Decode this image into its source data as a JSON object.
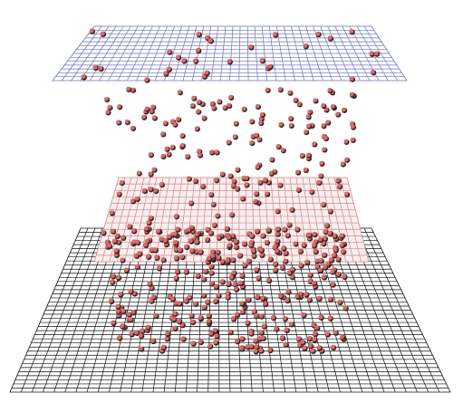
{
  "scene": {
    "background": "#ffffff",
    "planes": [
      {
        "name": "top-grid-plane",
        "color": "#6f73b8",
        "rows": 14,
        "cols": 38
      },
      {
        "name": "middle-grid-plane",
        "color": "#c98a8a",
        "fill": "#fbeeee",
        "rows": 13,
        "cols": 36
      },
      {
        "name": "bottom-grid-plane",
        "color": "#111111",
        "rows": 40,
        "cols": 40
      }
    ],
    "particle": {
      "face": "#d96b6b",
      "shadow": "#3a2626",
      "count_top": 32,
      "count_gap": 120,
      "count_middle": 70,
      "count_bottom": 330
    }
  }
}
